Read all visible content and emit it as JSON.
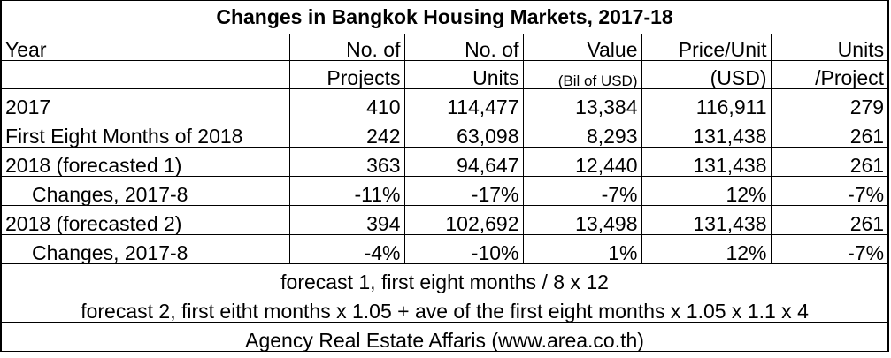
{
  "title": "Changes in Bangkok Housing Markets, 2017-18",
  "headers": {
    "year": "Year",
    "projects_1": "No. of",
    "projects_2": "Projects",
    "units_1": "No. of",
    "units_2": "Units",
    "value_1": "Value",
    "value_2": "(Bil of USD)",
    "price_1": "Price/Unit",
    "price_2": "(USD)",
    "upp_1": "Units",
    "upp_2": "/Project"
  },
  "rows": [
    {
      "label": "2017",
      "projects": "410",
      "units": "114,477",
      "value": "13,384",
      "price": "116,911",
      "upp": "279"
    },
    {
      "label": "First Eight Months of 2018",
      "projects": "242",
      "units": "63,098",
      "value": "8,293",
      "price": "131,438",
      "upp": "261"
    },
    {
      "label": "2018 (forecasted 1)",
      "projects": "363",
      "units": "94,647",
      "value": "12,440",
      "price": "131,438",
      "upp": "261"
    },
    {
      "label": "Changes, 2017-8",
      "projects": "-11%",
      "units": "-17%",
      "value": "-7%",
      "price": "12%",
      "upp": "-7%"
    },
    {
      "label": "2018 (forecasted 2)",
      "projects": "394",
      "units": "102,692",
      "value": "13,498",
      "price": "131,438",
      "upp": "261"
    },
    {
      "label": "Changes, 2017-8",
      "projects": "-4%",
      "units": "-10%",
      "value": "1%",
      "price": "12%",
      "upp": "-7%"
    }
  ],
  "notes": {
    "forecast1": "forecast 1, first eight months / 8 x 12",
    "forecast2": "forecast 2, first eitht months x 1.05 + ave of the first eight months x 1.05 x 1.1 x 4",
    "source": "Agency Real Estate Affaris (www.area.co.th)"
  }
}
